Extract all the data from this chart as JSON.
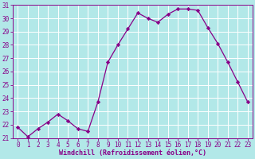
{
  "x": [
    0,
    1,
    2,
    3,
    4,
    5,
    6,
    7,
    8,
    9,
    10,
    11,
    12,
    13,
    14,
    15,
    16,
    17,
    18,
    19,
    20,
    21,
    22,
    23
  ],
  "y": [
    21.8,
    21.1,
    21.7,
    22.2,
    22.8,
    22.3,
    21.7,
    21.5,
    23.7,
    26.7,
    28.0,
    29.2,
    30.4,
    30.0,
    29.7,
    30.3,
    30.7,
    30.7,
    30.6,
    29.3,
    28.1,
    26.7,
    25.2,
    23.7
  ],
  "line_color": "#880088",
  "marker": "D",
  "marker_size": 2.2,
  "bg_color": "#b2e8e8",
  "grid_color": "#ffffff",
  "xlabel": "Windchill (Refroidissement éolien,°C)",
  "xlabel_color": "#880088",
  "tick_color": "#880088",
  "ylim": [
    21,
    31
  ],
  "xlim_min": -0.5,
  "xlim_max": 23.5,
  "yticks": [
    21,
    22,
    23,
    24,
    25,
    26,
    27,
    28,
    29,
    30,
    31
  ],
  "xticks": [
    0,
    1,
    2,
    3,
    4,
    5,
    6,
    7,
    8,
    9,
    10,
    11,
    12,
    13,
    14,
    15,
    16,
    17,
    18,
    19,
    20,
    21,
    22,
    23
  ],
  "tick_fontsize": 5.5,
  "xlabel_fontsize": 6.0,
  "linewidth": 0.9
}
